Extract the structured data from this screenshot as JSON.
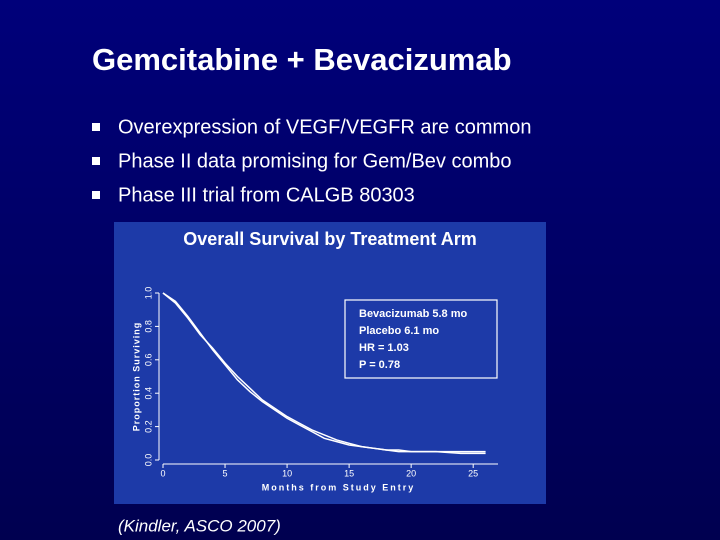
{
  "slide": {
    "title": "Gemcitabine + Bevacizumab",
    "bullets": [
      "Overexpression of VEGF/VEGFR are common",
      "Phase II data promising for Gem/Bev combo",
      "Phase III trial from CALGB 80303"
    ],
    "citation": "(Kindler, ASCO 2007)"
  },
  "chart_data": {
    "type": "line",
    "title": "Overall Survival by Treatment Arm",
    "x_label": "Months from Study Entry",
    "y_label": "Proportion Surviving",
    "annotations": [
      "Bevacizumab 5.8 mo",
      "Placebo 6.1 mo",
      "HR = 1.03",
      "P = 0.78"
    ],
    "x": [
      0,
      1,
      2,
      3,
      4,
      5,
      6,
      7,
      8,
      9,
      10,
      11,
      12,
      13,
      14,
      15,
      16,
      17,
      18,
      19,
      20,
      22,
      24,
      26
    ],
    "series": [
      {
        "name": "Bevacizumab",
        "color": "#ffffff",
        "values": [
          1.0,
          0.95,
          0.86,
          0.76,
          0.66,
          0.57,
          0.48,
          0.41,
          0.35,
          0.3,
          0.25,
          0.21,
          0.17,
          0.13,
          0.11,
          0.09,
          0.08,
          0.07,
          0.06,
          0.06,
          0.05,
          0.05,
          0.05,
          0.05
        ]
      },
      {
        "name": "Placebo",
        "color": "#ffffff",
        "values": [
          1.0,
          0.94,
          0.85,
          0.75,
          0.67,
          0.58,
          0.5,
          0.43,
          0.36,
          0.31,
          0.26,
          0.22,
          0.18,
          0.15,
          0.12,
          0.1,
          0.08,
          0.07,
          0.06,
          0.05,
          0.05,
          0.05,
          0.04,
          0.04
        ]
      }
    ],
    "xlim": [
      0,
      27
    ],
    "ylim": [
      0,
      1
    ],
    "xticks": [
      0,
      5,
      10,
      15,
      20,
      25
    ],
    "yticks": [
      {
        "value": 0,
        "label": "0.0"
      },
      0.2,
      0.4,
      0.6,
      0.8,
      {
        "value": 1,
        "label": "1.0"
      }
    ]
  }
}
